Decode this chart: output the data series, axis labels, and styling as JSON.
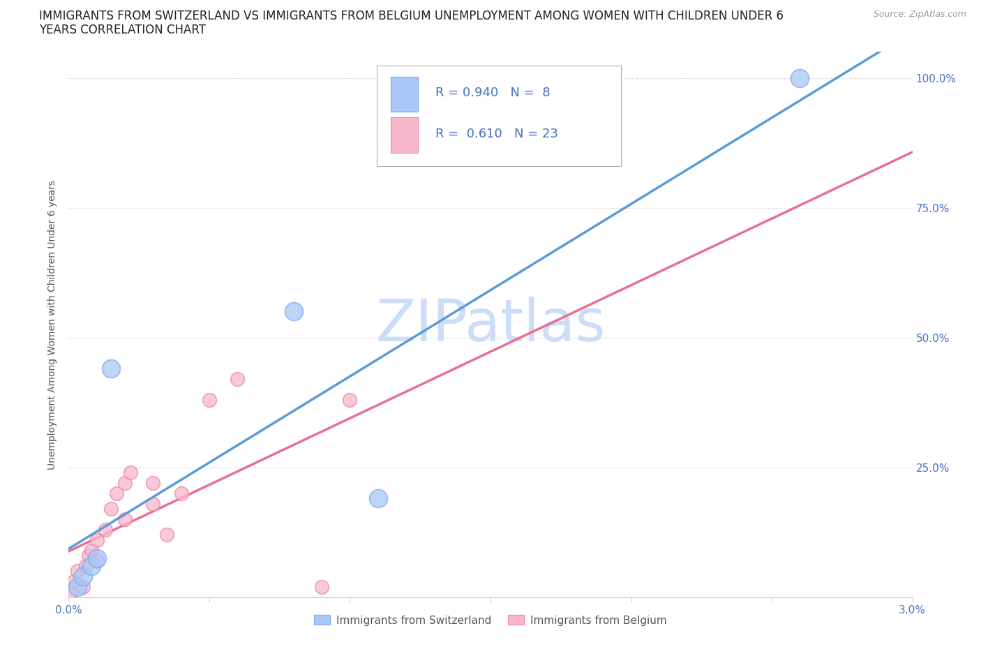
{
  "title_line1": "IMMIGRANTS FROM SWITZERLAND VS IMMIGRANTS FROM BELGIUM UNEMPLOYMENT AMONG WOMEN WITH CHILDREN UNDER 6",
  "title_line2": "YEARS CORRELATION CHART",
  "source": "Source: ZipAtlas.com",
  "ylabel": "Unemployment Among Women with Children Under 6 years",
  "xlim": [
    0.0,
    0.03
  ],
  "ylim": [
    0.0,
    1.05
  ],
  "xticks": [
    0.0,
    0.005,
    0.01,
    0.015,
    0.02,
    0.025,
    0.03
  ],
  "xticklabels": [
    "0.0%",
    "",
    "",
    "",
    "",
    "",
    "3.0%"
  ],
  "yticks": [
    0.0,
    0.25,
    0.5,
    0.75,
    1.0
  ],
  "yticklabels_right": [
    "",
    "25.0%",
    "50.0%",
    "75.0%",
    "100.0%"
  ],
  "switzerland_color": "#a8c8f8",
  "switzerland_edge_color": "#7aaae8",
  "belgium_color": "#f8b8cc",
  "belgium_edge_color": "#e888a8",
  "switzerland_line_color": "#5b9bd5",
  "belgium_line_color": "#e87090",
  "switzerland_R": 0.94,
  "switzerland_N": 8,
  "belgium_R": 0.61,
  "belgium_N": 23,
  "watermark": "ZIPatlas",
  "watermark_color": "#ccddf8",
  "legend_label_switzerland": "Immigrants from Switzerland",
  "legend_label_belgium": "Immigrants from Belgium",
  "switzerland_points": [
    [
      0.0003,
      0.02
    ],
    [
      0.0005,
      0.04
    ],
    [
      0.0008,
      0.06
    ],
    [
      0.001,
      0.075
    ],
    [
      0.0015,
      0.44
    ],
    [
      0.008,
      0.55
    ],
    [
      0.011,
      0.19
    ],
    [
      0.026,
      1.0
    ]
  ],
  "belgium_points": [
    [
      0.0001,
      0.01
    ],
    [
      0.0002,
      0.03
    ],
    [
      0.0003,
      0.05
    ],
    [
      0.0005,
      0.02
    ],
    [
      0.0006,
      0.06
    ],
    [
      0.0007,
      0.08
    ],
    [
      0.0008,
      0.09
    ],
    [
      0.001,
      0.07
    ],
    [
      0.001,
      0.11
    ],
    [
      0.0013,
      0.13
    ],
    [
      0.0015,
      0.17
    ],
    [
      0.0017,
      0.2
    ],
    [
      0.002,
      0.15
    ],
    [
      0.002,
      0.22
    ],
    [
      0.0022,
      0.24
    ],
    [
      0.003,
      0.18
    ],
    [
      0.003,
      0.22
    ],
    [
      0.0035,
      0.12
    ],
    [
      0.004,
      0.2
    ],
    [
      0.005,
      0.38
    ],
    [
      0.006,
      0.42
    ],
    [
      0.009,
      0.02
    ],
    [
      0.01,
      0.38
    ]
  ],
  "switzerland_marker_size": 350,
  "belgium_marker_size": 200,
  "grid_color": "#dddddd",
  "background_color": "#ffffff",
  "title_fontsize": 12,
  "axis_label_fontsize": 10,
  "tick_fontsize": 11,
  "legend_r_color": "#4472c4",
  "tick_color": "#4472c4"
}
